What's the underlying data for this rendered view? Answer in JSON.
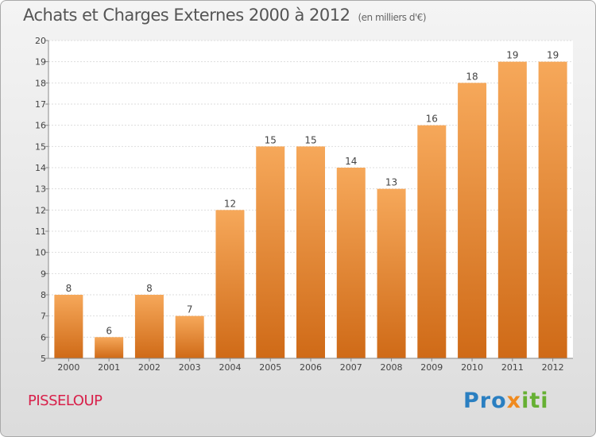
{
  "page": {
    "title": "Achats et Charges Externes 2000 à 2012",
    "unit": "(en milliers d'€)",
    "town": "PISSELOUP",
    "logo": "Proxiti"
  },
  "colors": {
    "bar_top": "#f6a85a",
    "bar_bottom": "#cf6a17",
    "town_text": "#d8204a"
  },
  "chart_data": {
    "type": "bar",
    "title": "Achats et Charges Externes 2000 à 2012",
    "subtitle": "(en milliers d'€)",
    "categories": [
      "2000",
      "2001",
      "2002",
      "2003",
      "2004",
      "2005",
      "2006",
      "2007",
      "2008",
      "2009",
      "2010",
      "2011",
      "2012"
    ],
    "values": [
      8,
      6,
      8,
      7,
      12,
      15,
      15,
      14,
      13,
      16,
      18,
      19,
      19
    ],
    "data_labels": [
      "8",
      "6",
      "8",
      "7",
      "12",
      "15",
      "15",
      "14",
      "13",
      "16",
      "18",
      "19",
      "19"
    ],
    "ylim": [
      5,
      20
    ],
    "yticks": [
      "5",
      "6",
      "7",
      "8",
      "9",
      "10",
      "11",
      "12",
      "13",
      "14",
      "15",
      "16",
      "17",
      "18",
      "19",
      "20"
    ],
    "xlabel": "",
    "ylabel": "",
    "grid": true
  }
}
